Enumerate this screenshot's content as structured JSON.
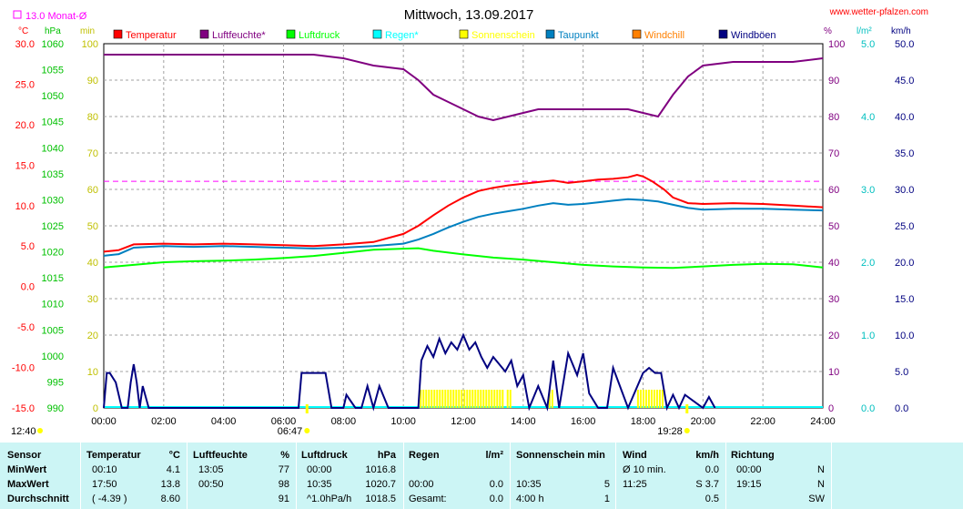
{
  "header": {
    "title": "Mittwoch, 13.09.2017",
    "site": "www.wetter-pfalzen.com",
    "monat_label": "13.0 Monat-Ø"
  },
  "axes": {
    "left_units": [
      "°C",
      "hPa",
      "min"
    ],
    "right_units": [
      "%",
      "l/m²",
      "km/h"
    ],
    "temp_ticks": [
      "30.0",
      "25.0",
      "20.0",
      "15.0",
      "10.0",
      "5.0",
      "0.0",
      "-5.0",
      "-10.0",
      "-15.0"
    ],
    "press_ticks": [
      "1060",
      "1055",
      "1050",
      "1045",
      "1040",
      "1035",
      "1030",
      "1025",
      "1020",
      "1015",
      "1010",
      "1005",
      "1000",
      "995",
      "990"
    ],
    "min_ticks": [
      "100",
      "90",
      "80",
      "70",
      "60",
      "50",
      "40",
      "30",
      "20",
      "10",
      "0"
    ],
    "hum_ticks": [
      "100",
      "90",
      "80",
      "70",
      "60",
      "50",
      "40",
      "30",
      "20",
      "10",
      "0"
    ],
    "rain_ticks": [
      "5.0",
      "4.0",
      "3.0",
      "2.0",
      "1.0",
      "0.0"
    ],
    "wind_ticks": [
      "50.0",
      "45.0",
      "40.0",
      "35.0",
      "30.0",
      "25.0",
      "20.0",
      "15.0",
      "10.0",
      "5.0",
      "0.0"
    ],
    "time_ticks": [
      "00:00",
      "02:00",
      "04:00",
      "06:00",
      "08:00",
      "10:00",
      "12:00",
      "14:00",
      "16:00",
      "18:00",
      "20:00",
      "22:00",
      "24:00"
    ],
    "sunrise": "06:47",
    "sunset": "19:28",
    "noon_marker": "12:40"
  },
  "legend": [
    {
      "name": "Temperatur",
      "color": "#ff0000"
    },
    {
      "name": "Luftfeuchte*",
      "color": "#800080"
    },
    {
      "name": "Luftdruck",
      "color": "#00ff00"
    },
    {
      "name": "Regen*",
      "color": "#00ffff"
    },
    {
      "name": "Sonnenschein",
      "color": "#ffff00"
    },
    {
      "name": "Taupunkt",
      "color": "#0080c0"
    },
    {
      "name": "Windchill",
      "color": "#ff8000"
    },
    {
      "name": "Windböen",
      "color": "#000080"
    }
  ],
  "chart_data": {
    "type": "line",
    "title": "Mittwoch, 13.09.2017",
    "x_range_hours": [
      0,
      24
    ],
    "temp_range": [
      -15,
      30
    ],
    "press_range": [
      990,
      1060
    ],
    "hum_range": [
      0,
      100
    ],
    "wind_range": [
      0,
      50
    ],
    "rain_range": [
      0,
      5
    ],
    "monat_avg_temp": 13.0,
    "series": [
      {
        "name": "Temperatur",
        "axis": "temp",
        "color": "#ff0000",
        "x": [
          0,
          0.5,
          1,
          2,
          3,
          4,
          5,
          6,
          7,
          8,
          9,
          10,
          10.5,
          11,
          11.5,
          12,
          12.5,
          13,
          13.5,
          14,
          14.5,
          15,
          15.5,
          16,
          16.5,
          17,
          17.5,
          17.8,
          18,
          18.3,
          18.7,
          19,
          19.5,
          20,
          21,
          22,
          23,
          24
        ],
        "y": [
          4.3,
          4.5,
          5.2,
          5.3,
          5.2,
          5.3,
          5.2,
          5.1,
          5.0,
          5.2,
          5.5,
          6.5,
          7.5,
          8.8,
          10.0,
          11.0,
          11.8,
          12.2,
          12.5,
          12.7,
          12.9,
          13.1,
          12.8,
          13.0,
          13.2,
          13.3,
          13.5,
          13.8,
          13.6,
          13.0,
          12.0,
          11.0,
          10.3,
          10.2,
          10.3,
          10.2,
          10.0,
          9.8
        ]
      },
      {
        "name": "Luftfeuchte*",
        "axis": "hum",
        "color": "#800080",
        "x": [
          0,
          1,
          2,
          3,
          4,
          5,
          6,
          7,
          8,
          9,
          10,
          10.5,
          11,
          11.5,
          12,
          12.5,
          13,
          13.5,
          14,
          14.5,
          15,
          15.5,
          16,
          16.5,
          17,
          17.5,
          18,
          18.5,
          19,
          19.5,
          20,
          21,
          22,
          23,
          24
        ],
        "y": [
          97,
          97,
          97,
          97,
          97,
          97,
          97,
          97,
          96,
          94,
          93,
          90,
          86,
          84,
          82,
          80,
          79,
          80,
          81,
          82,
          82,
          82,
          82,
          82,
          82,
          82,
          81,
          80,
          86,
          91,
          94,
          95,
          95,
          95,
          96
        ]
      },
      {
        "name": "Luftdruck",
        "axis": "press",
        "color": "#00ff00",
        "x": [
          0,
          1,
          2,
          3,
          4,
          5,
          6,
          7,
          8,
          9,
          10,
          10.5,
          11,
          12,
          13,
          14,
          15,
          16,
          17,
          18,
          19,
          20,
          21,
          22,
          23,
          24
        ],
        "y": [
          1017.0,
          1017.5,
          1018.0,
          1018.2,
          1018.3,
          1018.5,
          1018.8,
          1019.2,
          1019.8,
          1020.4,
          1020.6,
          1020.7,
          1020.2,
          1019.5,
          1018.9,
          1018.5,
          1018.0,
          1017.5,
          1017.2,
          1017.0,
          1016.9,
          1017.2,
          1017.5,
          1017.7,
          1017.6,
          1017.0
        ]
      },
      {
        "name": "Taupunkt",
        "axis": "temp",
        "color": "#0080c0",
        "x": [
          0,
          0.5,
          1,
          2,
          3,
          4,
          5,
          6,
          7,
          8,
          9,
          10,
          10.5,
          11,
          11.5,
          12,
          12.5,
          13,
          13.5,
          14,
          14.5,
          15,
          15.5,
          16,
          16.5,
          17,
          17.5,
          18,
          18.5,
          19,
          19.5,
          20,
          21,
          22,
          23,
          24
        ],
        "y": [
          3.8,
          4.0,
          4.8,
          5.0,
          4.9,
          5.0,
          4.9,
          4.8,
          4.7,
          4.8,
          5.0,
          5.3,
          5.8,
          6.5,
          7.3,
          8.0,
          8.6,
          9.0,
          9.3,
          9.6,
          10.0,
          10.3,
          10.1,
          10.2,
          10.4,
          10.6,
          10.8,
          10.7,
          10.5,
          10.1,
          9.7,
          9.5,
          9.6,
          9.6,
          9.5,
          9.4
        ]
      },
      {
        "name": "Windböen",
        "axis": "wind",
        "color": "#000080",
        "x": [
          0,
          0.1,
          0.2,
          0.4,
          0.6,
          0.8,
          0.9,
          1.0,
          1.1,
          1.2,
          1.3,
          1.5,
          1.7,
          6.5,
          6.6,
          6.8,
          7.0,
          7.2,
          7.4,
          7.6,
          8.0,
          8.1,
          8.4,
          8.6,
          8.8,
          9.0,
          9.2,
          9.5,
          10.5,
          10.6,
          10.8,
          11.0,
          11.2,
          11.4,
          11.6,
          11.8,
          12.0,
          12.2,
          12.4,
          12.6,
          12.8,
          13.0,
          13.2,
          13.4,
          13.6,
          13.8,
          14.0,
          14.2,
          14.5,
          14.8,
          15.0,
          15.2,
          15.5,
          15.8,
          16.0,
          16.2,
          16.5,
          16.8,
          17.0,
          17.5,
          18.0,
          18.2,
          18.4,
          18.6,
          18.8,
          19.0,
          19.2,
          19.4,
          20.0,
          20.2,
          20.4
        ],
        "y": [
          0,
          4.8,
          4.8,
          3.5,
          0,
          0,
          3.5,
          6,
          3.5,
          0,
          3.0,
          0,
          0,
          0,
          4.8,
          4.8,
          4.8,
          4.8,
          4.8,
          0,
          0,
          1.8,
          0,
          0,
          3.0,
          0,
          3.0,
          0,
          0,
          6.5,
          8.5,
          7.0,
          9.5,
          7.5,
          9.0,
          8.0,
          10.0,
          8.0,
          9.0,
          7.0,
          5.5,
          7.0,
          6.0,
          5.0,
          6.5,
          3.0,
          4.5,
          0,
          3.0,
          0,
          6.5,
          0,
          7.5,
          4.5,
          7.5,
          2.0,
          0,
          0,
          5.5,
          0,
          4.8,
          5.5,
          4.8,
          4.8,
          0,
          1.8,
          0,
          1.8,
          0,
          1.5,
          0
        ]
      }
    ],
    "sunshine_blocks_hours": [
      [
        10.55,
        13.35
      ],
      [
        13.45,
        13.6
      ],
      [
        14.85,
        14.95
      ],
      [
        17.8,
        18.65
      ]
    ]
  },
  "stats": {
    "headers": {
      "sensor": "Sensor",
      "temp": "Temperatur",
      "temp_u": "°C",
      "hum": "Luftfeuchte",
      "hum_u": "%",
      "press": "Luftdruck",
      "press_u": "hPa",
      "rain": "Regen",
      "rain_u": "l/m²",
      "sun": "Sonnenschein min",
      "wind": "Wind",
      "wind_u": "km/h",
      "dir": "Richtung"
    },
    "rows": [
      {
        "label": "MinWert",
        "t_time": "00:10",
        "t_val": "4.1",
        "h_time": "13:05",
        "h_val": "77",
        "p_time": "00:00",
        "p_val": "1016.8",
        "r_time": "",
        "r_val": "",
        "s_time": "",
        "s_val": "",
        "w_time": "Ø 10 min.",
        "w_val": "0.0",
        "d_time": "00:00",
        "d_val": "N"
      },
      {
        "label": "MaxWert",
        "t_time": "17:50",
        "t_val": "13.8",
        "h_time": "00:50",
        "h_val": "98",
        "p_time": "10:35",
        "p_val": "1020.7",
        "r_time": "00:00",
        "r_val": "0.0",
        "s_time": "10:35",
        "s_val": "5",
        "w_time": "11:25",
        "w_val": "S 3.7",
        "d_time": "19:15",
        "d_val": "N"
      },
      {
        "label": "Durchschnitt",
        "t_time": "( -4.39 )",
        "t_val": "8.60",
        "h_time": "",
        "h_val": "91",
        "p_time": "^1.0hPa/h",
        "p_val": "1018.5",
        "r_time": "Gesamt:",
        "r_val": "0.0",
        "s_time": "4:00 h",
        "s_val": "1",
        "w_time": "",
        "w_val": "0.5",
        "d_time": "",
        "d_val": "SW"
      }
    ]
  }
}
